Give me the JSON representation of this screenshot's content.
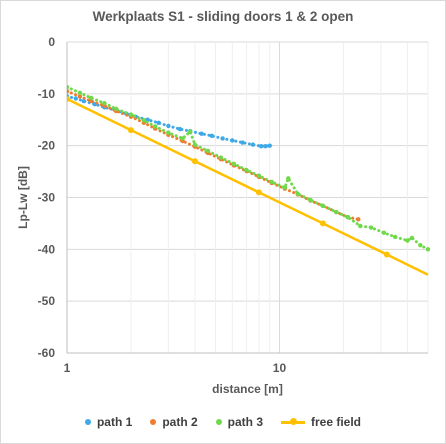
{
  "chart_data": {
    "type": "scatter",
    "title": "Werkplaats S1 - sliding doors 1 & 2 open",
    "xlabel": "distance [m]",
    "ylabel": "Lp-Lw [dB]",
    "xscale": "log",
    "xlim": [
      1,
      50
    ],
    "ylim": [
      -60,
      0
    ],
    "xticks": [
      {
        "value": 1,
        "label": "1"
      },
      {
        "value": 10,
        "label": "10"
      }
    ],
    "yticks": [
      0,
      -10,
      -20,
      -30,
      -40,
      -50,
      -60
    ],
    "grid": true,
    "legend_position": "bottom",
    "series": [
      {
        "name": "path 1",
        "color": "#3FA9E8",
        "style": "dotted-markers",
        "x": [
          1.0,
          1.1,
          1.2,
          1.35,
          1.5,
          1.7,
          1.9,
          2.1,
          2.4,
          2.7,
          3.0,
          3.4,
          3.8,
          4.3,
          4.8,
          5.4,
          6.0,
          6.7,
          7.5,
          8.2,
          8.6,
          9.0
        ],
        "y": [
          -10.5,
          -10.9,
          -11.4,
          -12.0,
          -12.6,
          -13.2,
          -13.8,
          -14.4,
          -15.0,
          -15.6,
          -16.2,
          -16.8,
          -17.2,
          -17.7,
          -18.1,
          -18.6,
          -19.0,
          -19.4,
          -19.8,
          -20.1,
          -20.1,
          -20.0
        ]
      },
      {
        "name": "path 2",
        "color": "#ED7D31",
        "style": "dotted-markers",
        "x": [
          1.0,
          1.15,
          1.3,
          1.5,
          1.7,
          2.0,
          2.3,
          2.6,
          3.0,
          3.5,
          4.0,
          4.6,
          5.3,
          6.1,
          7.0,
          8.0,
          9.2,
          10.6,
          12.2,
          14.0,
          16.0,
          18.5,
          21.0,
          23.5
        ],
        "y": [
          -9.5,
          -10.5,
          -11.4,
          -12.3,
          -13.3,
          -14.4,
          -15.6,
          -16.7,
          -17.9,
          -19.1,
          -20.2,
          -21.4,
          -22.6,
          -23.8,
          -24.9,
          -26.0,
          -27.2,
          -28.3,
          -29.4,
          -30.6,
          -31.6,
          -32.8,
          -33.8,
          -34.2
        ]
      },
      {
        "name": "path 3",
        "color": "#70D94B",
        "style": "dotted-markers",
        "x": [
          1.0,
          1.15,
          1.3,
          1.5,
          1.7,
          2.0,
          2.3,
          2.6,
          3.0,
          3.5,
          3.8,
          4.0,
          4.6,
          5.3,
          6.1,
          7.0,
          8.0,
          9.2,
          10.6,
          11.0,
          12.2,
          14.0,
          16.0,
          18.5,
          21.0,
          24.0,
          27.0,
          31.0,
          35.0,
          40.0,
          42.0,
          46.0,
          50.0
        ],
        "y": [
          -8.7,
          -9.8,
          -10.8,
          -11.8,
          -12.9,
          -14.0,
          -15.1,
          -16.3,
          -17.5,
          -18.6,
          -17.3,
          -19.8,
          -21.0,
          -22.3,
          -23.5,
          -24.7,
          -25.8,
          -27.0,
          -28.1,
          -26.3,
          -29.3,
          -30.5,
          -31.6,
          -32.8,
          -33.8,
          -35.5,
          -35.8,
          -36.8,
          -37.6,
          -38.3,
          -37.8,
          -39.2,
          -40.0
        ]
      },
      {
        "name": "free field",
        "color": "#FFC000",
        "style": "line-markers",
        "x": [
          1,
          2,
          4,
          8,
          16,
          32,
          50
        ],
        "y": [
          -11,
          -17,
          -23,
          -29,
          -35,
          -41,
          -44.9
        ]
      }
    ]
  }
}
